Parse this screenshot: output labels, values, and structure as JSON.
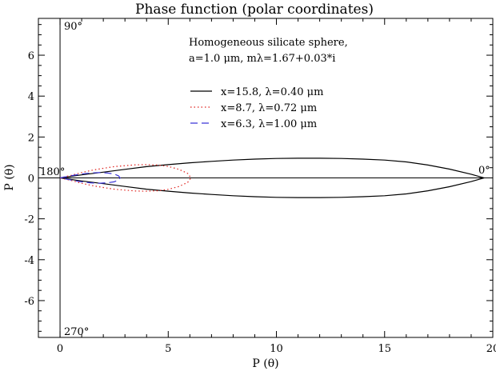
{
  "chart_data": {
    "type": "line",
    "title": "Phase function (polar coordinates)",
    "xlabel": "P (θ)",
    "ylabel": "P (θ)",
    "xlim": [
      -1,
      20
    ],
    "ylim": [
      -7.8,
      7.8
    ],
    "xticks": [
      0,
      5,
      10,
      15,
      20
    ],
    "yticks": [
      -6,
      -4,
      -2,
      0,
      2,
      4,
      6
    ],
    "grid": false,
    "legend_position": "upper-right",
    "annotations": {
      "description_line1": "Homogeneous silicate sphere,",
      "description_line2": "a=1.0 μm, mλ=1.67+0.03*i",
      "angle_90": "90°",
      "angle_180": "180°",
      "angle_0": "0°",
      "angle_270": "270°"
    },
    "series": [
      {
        "name": "x=15.8, λ=0.40 μm",
        "color": "#000000",
        "linestyle": "solid",
        "x": [
          0,
          1,
          2,
          3,
          4,
          5,
          6,
          7,
          8,
          9,
          10,
          11,
          12,
          13,
          14,
          15,
          16,
          17,
          18,
          19,
          19.6
        ],
        "y": [
          0,
          0.15,
          0.28,
          0.42,
          0.55,
          0.65,
          0.74,
          0.81,
          0.87,
          0.92,
          0.95,
          0.96,
          0.96,
          0.95,
          0.92,
          0.87,
          0.78,
          0.63,
          0.43,
          0.18,
          0
        ]
      },
      {
        "name": "x=8.7, λ=0.72 μm",
        "color": "#e0201c",
        "linestyle": "dotted",
        "x": [
          0,
          0.5,
          1,
          1.5,
          2,
          2.5,
          3,
          3.5,
          4,
          4.5,
          5,
          5.5,
          5.9,
          6.05
        ],
        "y": [
          0,
          0.12,
          0.26,
          0.38,
          0.47,
          0.55,
          0.6,
          0.64,
          0.65,
          0.63,
          0.56,
          0.42,
          0.22,
          0
        ]
      },
      {
        "name": "x=6.3, λ=1.00 μm",
        "color": "#3b35d6",
        "linestyle": "dashed",
        "x": [
          0,
          0.3,
          0.6,
          1.0,
          1.4,
          1.8,
          2.2,
          2.5,
          2.7,
          2.78
        ],
        "y": [
          0,
          0.06,
          0.12,
          0.19,
          0.24,
          0.26,
          0.24,
          0.19,
          0.1,
          0
        ]
      }
    ]
  }
}
